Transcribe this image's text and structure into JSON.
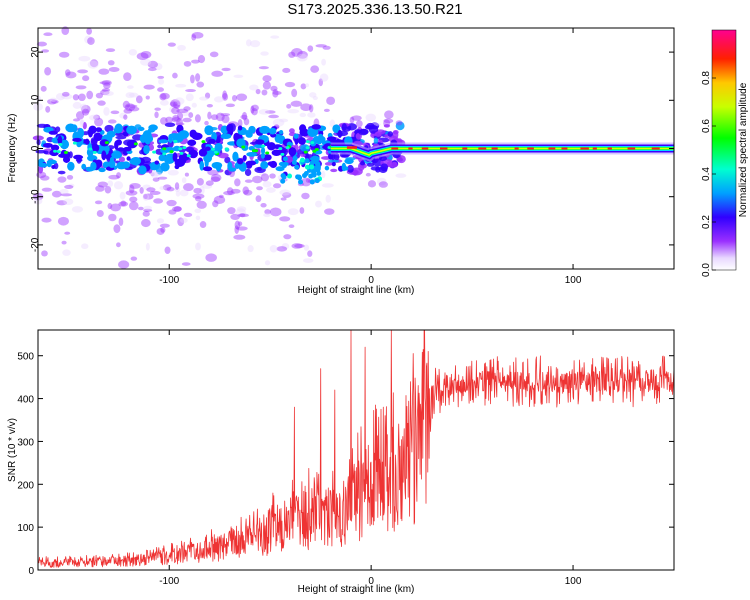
{
  "title": "S173.2025.336.13.50.R21",
  "chart_data": [
    {
      "type": "heatmap",
      "xlabel": "Height of straight line (km)",
      "ylabel": "Frequency (Hz)",
      "xlim": [
        -165,
        150
      ],
      "ylim": [
        -25,
        25
      ],
      "xticks": [
        -100,
        0,
        100
      ],
      "yticks": [
        -20,
        -10,
        0,
        10,
        20
      ],
      "colorbar": {
        "label": "Normalized spectral amplitude",
        "range": [
          0,
          1
        ],
        "ticks": [
          "0.0",
          "0.2",
          "0.4",
          "0.6",
          "0.8"
        ],
        "tick_values": [
          0,
          0.2,
          0.4,
          0.6,
          0.8
        ],
        "colors": [
          "#ffffff",
          "#7f00ff",
          "#0000ff",
          "#00ffff",
          "#00ff00",
          "#ffff00",
          "#ff0000",
          "#ff0080"
        ]
      }
    },
    {
      "type": "line",
      "xlabel": "Height of straight line (km)",
      "ylabel": "SNR (10 * v/v)",
      "xlim": [
        -165,
        150
      ],
      "ylim": [
        0,
        560
      ],
      "xticks": [
        -100,
        0,
        100
      ],
      "yticks": [
        0,
        100,
        200,
        300,
        400,
        500
      ],
      "color": "#ee3333",
      "envelope": [
        {
          "x": -165,
          "y": 20
        },
        {
          "x": -140,
          "y": 22
        },
        {
          "x": -120,
          "y": 28
        },
        {
          "x": -100,
          "y": 40
        },
        {
          "x": -80,
          "y": 60
        },
        {
          "x": -60,
          "y": 90
        },
        {
          "x": -40,
          "y": 140
        },
        {
          "x": -25,
          "y": 170
        },
        {
          "x": -15,
          "y": 150
        },
        {
          "x": -5,
          "y": 230
        },
        {
          "x": 5,
          "y": 270
        },
        {
          "x": 15,
          "y": 300
        },
        {
          "x": 25,
          "y": 390
        },
        {
          "x": 35,
          "y": 430
        },
        {
          "x": 50,
          "y": 440
        },
        {
          "x": 100,
          "y": 440
        },
        {
          "x": 150,
          "y": 440
        }
      ],
      "spikes": [
        {
          "x": -38,
          "y": 380
        },
        {
          "x": -25,
          "y": 470
        },
        {
          "x": -18,
          "y": 420
        },
        {
          "x": -10,
          "y": 560
        },
        {
          "x": -3,
          "y": 520
        },
        {
          "x": 10,
          "y": 560
        }
      ]
    }
  ]
}
